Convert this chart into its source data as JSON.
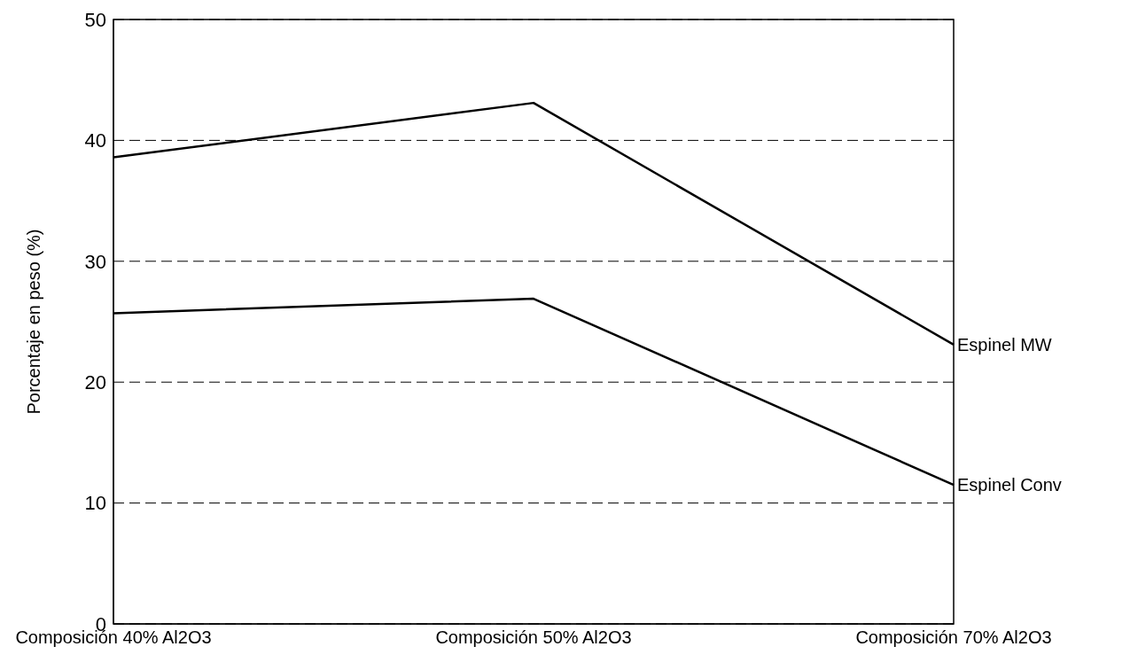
{
  "chart_data": {
    "type": "line",
    "ylabel": "Porcentaje en peso (%)",
    "categories": [
      "Composición 40% Al2O3",
      "Composición 50% Al2O3",
      "Composición 70% Al2O3"
    ],
    "series": [
      {
        "name": "Espinel MW",
        "color": "#000000",
        "values": [
          38.6,
          43.1,
          23.1
        ]
      },
      {
        "name": "Espinel Conv",
        "color": "#000000",
        "values": [
          25.7,
          26.9,
          11.5
        ]
      }
    ],
    "ylim": [
      0,
      50
    ],
    "yticks": [
      0,
      10,
      20,
      30,
      40,
      50
    ],
    "grid": "y",
    "line_style": "solid",
    "marker": "none",
    "legend": false
  }
}
